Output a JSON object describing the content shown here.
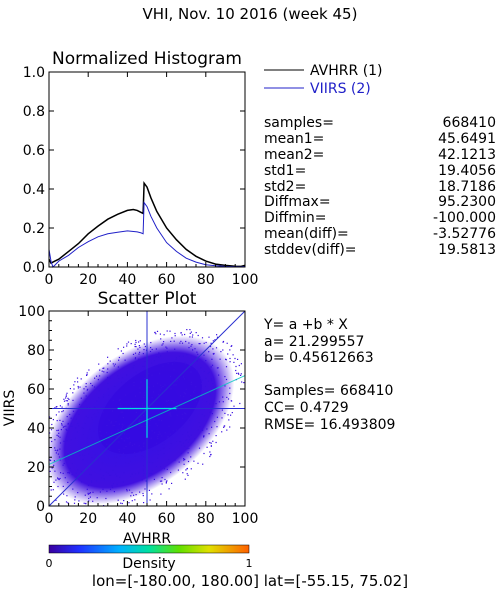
{
  "page": {
    "title": "VHI,  Nov. 10 2016 (week 45)"
  },
  "histogram": {
    "title": "Normalized Histogram",
    "legend": [
      {
        "label": "AVHRR (1)",
        "color": "#000000"
      },
      {
        "label": "VIIRS (2)",
        "color": "#2020c8"
      }
    ],
    "stats": [
      {
        "key": "samples=",
        "value": "668410"
      },
      {
        "key": "mean1=",
        "value": "45.6491"
      },
      {
        "key": "mean2=",
        "value": "42.1213"
      },
      {
        "key": "std1=",
        "value": "19.4056"
      },
      {
        "key": "std2=",
        "value": "18.7186"
      },
      {
        "key": "Diffmax=",
        "value": "95.2300"
      },
      {
        "key": "Diffmin=",
        "value": "-100.000"
      },
      {
        "key": "mean(diff)=",
        "value": "-3.52776"
      },
      {
        "key": "stddev(diff)=",
        "value": "19.5813"
      }
    ]
  },
  "scatter": {
    "title": "Scatter Plot",
    "xlabel": "AVHRR",
    "ylabel": "VIIRS",
    "regression": [
      "Y= a +b * X",
      "a= 21.299557",
      "b= 0.45612663"
    ],
    "metrics": [
      "Samples= 668410",
      "CC=  0.4729",
      "RMSE= 16.493809"
    ]
  },
  "colorbar": {
    "label": "Density",
    "min_label": "0",
    "max_label": "1"
  },
  "footer": "lon=[-180.00, 180.00] lat=[-55.15, 75.02]",
  "chart_data": [
    {
      "type": "line",
      "title": "Normalized Histogram",
      "xlim": [
        0,
        100
      ],
      "ylim": [
        0,
        1.0
      ],
      "xticks": [
        "0",
        "20",
        "40",
        "60",
        "80",
        "100"
      ],
      "yticks": [
        "0.0",
        "0.2",
        "0.4",
        "0.6",
        "0.8",
        "1.0"
      ],
      "legend_position": "outside-right-top",
      "series": [
        {
          "name": "AVHRR (1)",
          "color": "#000000",
          "x": [
            0,
            1,
            3,
            5,
            10,
            15,
            20,
            25,
            30,
            35,
            40,
            43,
            45,
            47,
            48,
            48.5,
            50,
            52,
            55,
            60,
            65,
            70,
            75,
            80,
            85,
            90,
            95,
            98,
            100
          ],
          "y": [
            0.04,
            0.02,
            0.03,
            0.04,
            0.08,
            0.12,
            0.17,
            0.21,
            0.245,
            0.27,
            0.29,
            0.295,
            0.29,
            0.28,
            0.275,
            0.43,
            0.41,
            0.355,
            0.285,
            0.2,
            0.14,
            0.09,
            0.055,
            0.03,
            0.015,
            0.008,
            0.004,
            0.003,
            0.008
          ]
        },
        {
          "name": "VIIRS (2)",
          "color": "#2020c8",
          "x": [
            0,
            1,
            2,
            3,
            5,
            10,
            15,
            20,
            25,
            30,
            35,
            40,
            45,
            47,
            48,
            48.5,
            50,
            52,
            55,
            60,
            65,
            70,
            75,
            80,
            85,
            90,
            95,
            98,
            100
          ],
          "y": [
            0.09,
            0.03,
            0.0,
            0.01,
            0.03,
            0.06,
            0.1,
            0.13,
            0.155,
            0.17,
            0.178,
            0.185,
            0.18,
            0.175,
            0.17,
            0.33,
            0.31,
            0.26,
            0.2,
            0.125,
            0.08,
            0.045,
            0.025,
            0.012,
            0.006,
            0.003,
            0.002,
            0.001,
            0.003
          ]
        }
      ]
    },
    {
      "type": "scatter",
      "title": "Scatter Plot",
      "xlabel": "AVHRR",
      "ylabel": "VIIRS",
      "xlim": [
        0,
        100
      ],
      "ylim": [
        0,
        100
      ],
      "xticks": [
        "0",
        "20",
        "40",
        "60",
        "80",
        "100"
      ],
      "yticks": [
        "0",
        "20",
        "40",
        "60",
        "80",
        "100"
      ],
      "point_count": 668410,
      "regression": {
        "a": 21.299557,
        "b": 0.45612663
      },
      "cc": 0.4729,
      "rmse": 16.493809,
      "reference_lines": {
        "one_to_one": true,
        "vertical_x": 50,
        "horizontal_y": 50
      },
      "cloud_color": "#4010e0",
      "colorbar": {
        "min": 0,
        "max": 1,
        "label": "Density"
      }
    }
  ]
}
